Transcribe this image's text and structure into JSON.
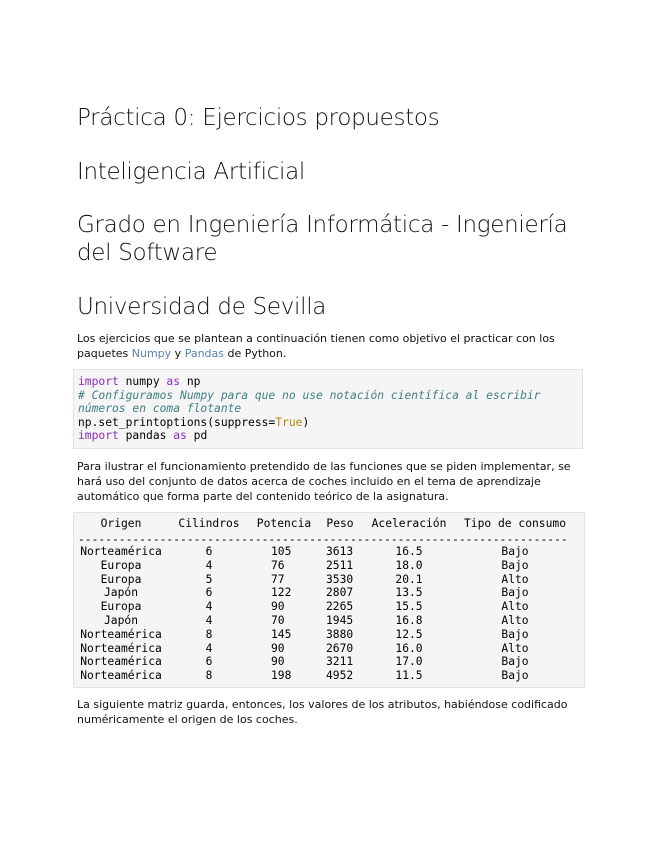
{
  "headings": [
    "Práctica 0: Ejercicios propuestos",
    "Inteligencia Artificial",
    "Grado en Ingeniería Informática - Ingeniería del Software",
    "Universidad de Sevilla"
  ],
  "intro": {
    "text1": "Los ejercicios que se plantean a continuación tienen como objetivo el practicar con los paquetes ",
    "link1": "Numpy",
    "text2": " y ",
    "link2": "Pandas",
    "text3": " de Python."
  },
  "code": {
    "l1": {
      "kw1": "import",
      "t1": " numpy ",
      "kw2": "as",
      "t2": " np"
    },
    "l2": "# Configuramos Numpy para que no use notación científica al escribir",
    "l3": "números en coma flotante",
    "l4": {
      "t1": "np.set_printoptions(suppress=",
      "v": "True",
      "t2": ")"
    },
    "l5": {
      "kw1": "import",
      "t1": " pandas ",
      "kw2": "as",
      "t2": " pd"
    }
  },
  "para2": "Para ilustrar el funcionamiento pretendido de las funciones que se piden implementar, se hará uso del conjunto de datos acerca de coches incluido en el tema de aprendizaje automático que forma parte del contenido teórico de la asignatura.",
  "table": {
    "headers": [
      "Origen",
      "Cilindros",
      "Potencia",
      "Peso",
      "Aceleración",
      "Tipo de consumo"
    ],
    "separator": "-------------------------------------------------------------------------",
    "rows": [
      [
        "Norteamérica",
        "6",
        "105",
        "3613",
        "16.5",
        "Bajo"
      ],
      [
        "Europa",
        "4",
        "76",
        "2511",
        "18.0",
        "Bajo"
      ],
      [
        "Europa",
        "5",
        "77",
        "3530",
        "20.1",
        "Alto"
      ],
      [
        "Japón",
        "6",
        "122",
        "2807",
        "13.5",
        "Bajo"
      ],
      [
        "Europa",
        "4",
        "90",
        "2265",
        "15.5",
        "Alto"
      ],
      [
        "Japón",
        "4",
        "70",
        "1945",
        "16.8",
        "Alto"
      ],
      [
        "Norteamérica",
        "8",
        "145",
        "3880",
        "12.5",
        "Bajo"
      ],
      [
        "Norteamérica",
        "4",
        "90",
        "2670",
        "16.0",
        "Alto"
      ],
      [
        "Norteamérica",
        "6",
        "90",
        "3211",
        "17.0",
        "Bajo"
      ],
      [
        "Norteamérica",
        "8",
        "198",
        "4952",
        "11.5",
        "Bajo"
      ]
    ]
  },
  "para3": "La siguiente matriz guarda, entonces, los valores de los atributos, habiéndose codificado numéricamente el origen de los coches."
}
